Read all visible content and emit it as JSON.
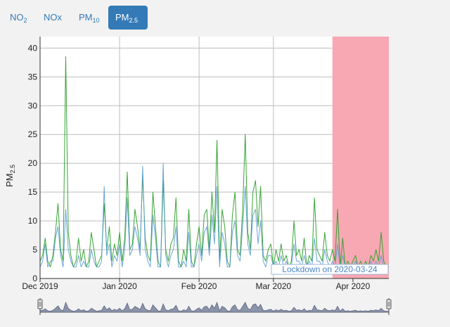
{
  "tabs": [
    {
      "base": "NO",
      "sub": "2",
      "active": false
    },
    {
      "base": "NOx",
      "sub": "",
      "active": false
    },
    {
      "base": "PM",
      "sub": "10",
      "active": false
    },
    {
      "base": "PM",
      "sub": "2.5",
      "active": true
    }
  ],
  "colors": {
    "series_green": "#2ca02c",
    "series_blue": "#5b9bd5",
    "lockdown_fill": "#f7a8b3",
    "annotation_text": "#4a86c8",
    "navigator_fill": "#8a93a8",
    "tab_accent": "#337ab7"
  },
  "chart_data": {
    "type": "line",
    "ylabel_base": "PM",
    "ylabel_sub": "2.5",
    "xlabel": "",
    "ylim": [
      0,
      42
    ],
    "xlim": [
      "2019-12-01",
      "2020-04-15"
    ],
    "grid": true,
    "y_ticks": [
      0,
      5,
      10,
      15,
      20,
      25,
      30,
      35,
      40
    ],
    "x_ticks": [
      {
        "date": "2019-12-01",
        "label": "Dec 2019"
      },
      {
        "date": "2020-01-01",
        "label": "Jan 2020"
      },
      {
        "date": "2020-02-01",
        "label": "Feb 2020"
      },
      {
        "date": "2020-03-01",
        "label": "Mar 2020"
      },
      {
        "date": "2020-04-01",
        "label": "Apr 2020"
      }
    ],
    "lockdown": {
      "start": "2020-03-24",
      "end": "2020-04-15",
      "label": "Lockdown on 2020-03-24"
    },
    "series": [
      {
        "color": "#2ca02c",
        "points": [
          [
            "2019-12-01",
            3
          ],
          [
            "2019-12-02",
            4
          ],
          [
            "2019-12-03",
            7
          ],
          [
            "2019-12-04",
            3
          ],
          [
            "2019-12-05",
            2
          ],
          [
            "2019-12-06",
            4
          ],
          [
            "2019-12-07",
            8
          ],
          [
            "2019-12-08",
            13
          ],
          [
            "2019-12-09",
            5
          ],
          [
            "2019-12-10",
            3
          ],
          [
            "2019-12-11",
            38.5
          ],
          [
            "2019-12-12",
            8
          ],
          [
            "2019-12-13",
            4
          ],
          [
            "2019-12-14",
            2
          ],
          [
            "2019-12-15",
            3
          ],
          [
            "2019-12-16",
            7
          ],
          [
            "2019-12-17",
            3
          ],
          [
            "2019-12-18",
            5
          ],
          [
            "2019-12-19",
            2
          ],
          [
            "2019-12-20",
            3
          ],
          [
            "2019-12-21",
            8
          ],
          [
            "2019-12-22",
            5
          ],
          [
            "2019-12-23",
            2
          ],
          [
            "2019-12-24",
            3
          ],
          [
            "2019-12-25",
            4
          ],
          [
            "2019-12-26",
            13
          ],
          [
            "2019-12-27",
            5
          ],
          [
            "2019-12-28",
            9
          ],
          [
            "2019-12-29",
            3
          ],
          [
            "2019-12-30",
            6
          ],
          [
            "2019-12-31",
            4
          ],
          [
            "2020-01-01",
            8
          ],
          [
            "2020-01-02",
            3
          ],
          [
            "2020-01-03",
            7
          ],
          [
            "2020-01-04",
            18.5
          ],
          [
            "2020-01-05",
            5
          ],
          [
            "2020-01-06",
            6
          ],
          [
            "2020-01-07",
            12
          ],
          [
            "2020-01-08",
            9
          ],
          [
            "2020-01-09",
            5
          ],
          [
            "2020-01-10",
            18
          ],
          [
            "2020-01-11",
            7
          ],
          [
            "2020-01-12",
            4
          ],
          [
            "2020-01-13",
            3
          ],
          [
            "2020-01-14",
            15
          ],
          [
            "2020-01-15",
            9
          ],
          [
            "2020-01-16",
            3
          ],
          [
            "2020-01-17",
            2
          ],
          [
            "2020-01-18",
            17
          ],
          [
            "2020-01-19",
            5
          ],
          [
            "2020-01-20",
            3
          ],
          [
            "2020-01-21",
            6
          ],
          [
            "2020-01-22",
            7
          ],
          [
            "2020-01-23",
            14
          ],
          [
            "2020-01-24",
            3
          ],
          [
            "2020-01-25",
            2
          ],
          [
            "2020-01-26",
            5
          ],
          [
            "2020-01-27",
            3
          ],
          [
            "2020-01-28",
            12
          ],
          [
            "2020-01-29",
            3
          ],
          [
            "2020-01-30",
            2
          ],
          [
            "2020-01-31",
            6
          ],
          [
            "2020-02-01",
            9
          ],
          [
            "2020-02-02",
            4
          ],
          [
            "2020-02-03",
            11
          ],
          [
            "2020-02-04",
            12
          ],
          [
            "2020-02-05",
            5
          ],
          [
            "2020-02-06",
            15
          ],
          [
            "2020-02-07",
            8
          ],
          [
            "2020-02-08",
            24
          ],
          [
            "2020-02-09",
            3
          ],
          [
            "2020-02-10",
            12
          ],
          [
            "2020-02-11",
            9
          ],
          [
            "2020-02-12",
            3
          ],
          [
            "2020-02-13",
            2
          ],
          [
            "2020-02-14",
            11
          ],
          [
            "2020-02-15",
            15
          ],
          [
            "2020-02-16",
            5
          ],
          [
            "2020-02-17",
            4
          ],
          [
            "2020-02-18",
            12
          ],
          [
            "2020-02-19",
            25
          ],
          [
            "2020-02-20",
            8
          ],
          [
            "2020-02-21",
            5
          ],
          [
            "2020-02-22",
            15
          ],
          [
            "2020-02-23",
            17
          ],
          [
            "2020-02-24",
            9
          ],
          [
            "2020-02-25",
            16
          ],
          [
            "2020-02-26",
            4
          ],
          [
            "2020-02-27",
            3
          ],
          [
            "2020-02-28",
            5
          ],
          [
            "2020-02-29",
            6
          ],
          [
            "2020-03-01",
            2
          ],
          [
            "2020-03-02",
            5
          ],
          [
            "2020-03-03",
            3
          ],
          [
            "2020-03-04",
            6
          ],
          [
            "2020-03-05",
            3
          ],
          [
            "2020-03-06",
            4
          ],
          [
            "2020-03-07",
            2
          ],
          [
            "2020-03-08",
            3
          ],
          [
            "2020-03-09",
            10
          ],
          [
            "2020-03-10",
            4
          ],
          [
            "2020-03-11",
            5
          ],
          [
            "2020-03-12",
            3
          ],
          [
            "2020-03-13",
            7
          ],
          [
            "2020-03-14",
            2
          ],
          [
            "2020-03-15",
            4
          ],
          [
            "2020-03-16",
            3
          ],
          [
            "2020-03-17",
            14
          ],
          [
            "2020-03-18",
            5
          ],
          [
            "2020-03-19",
            4
          ],
          [
            "2020-03-20",
            3
          ],
          [
            "2020-03-21",
            8
          ],
          [
            "2020-03-22",
            4
          ],
          [
            "2020-03-23",
            3
          ],
          [
            "2020-03-24",
            5
          ],
          [
            "2020-03-25",
            3
          ],
          [
            "2020-03-26",
            12
          ],
          [
            "2020-03-27",
            2
          ],
          [
            "2020-03-28",
            7
          ],
          [
            "2020-03-29",
            2
          ],
          [
            "2020-03-30",
            3
          ],
          [
            "2020-03-31",
            2
          ],
          [
            "2020-04-01",
            3
          ],
          [
            "2020-04-02",
            4
          ],
          [
            "2020-04-03",
            2
          ],
          [
            "2020-04-04",
            3
          ],
          [
            "2020-04-05",
            2
          ],
          [
            "2020-04-06",
            3
          ],
          [
            "2020-04-07",
            2
          ],
          [
            "2020-04-08",
            4
          ],
          [
            "2020-04-09",
            3
          ],
          [
            "2020-04-10",
            5
          ],
          [
            "2020-04-11",
            3
          ],
          [
            "2020-04-12",
            8
          ],
          [
            "2020-04-13",
            3
          ],
          [
            "2020-04-14",
            2
          ],
          [
            "2020-04-15",
            2
          ]
        ]
      },
      {
        "color": "#5b9bd5",
        "points": [
          [
            "2019-12-01",
            2
          ],
          [
            "2019-12-02",
            3
          ],
          [
            "2019-12-03",
            6
          ],
          [
            "2019-12-04",
            2
          ],
          [
            "2019-12-05",
            3
          ],
          [
            "2019-12-06",
            3
          ],
          [
            "2019-12-07",
            7
          ],
          [
            "2019-12-08",
            9
          ],
          [
            "2019-12-09",
            4
          ],
          [
            "2019-12-10",
            2
          ],
          [
            "2019-12-11",
            12
          ],
          [
            "2019-12-12",
            5
          ],
          [
            "2019-12-13",
            3
          ],
          [
            "2019-12-14",
            2
          ],
          [
            "2019-12-15",
            2
          ],
          [
            "2019-12-16",
            4
          ],
          [
            "2019-12-17",
            2
          ],
          [
            "2019-12-18",
            3
          ],
          [
            "2019-12-19",
            2
          ],
          [
            "2019-12-20",
            2
          ],
          [
            "2019-12-21",
            5
          ],
          [
            "2019-12-22",
            3
          ],
          [
            "2019-12-23",
            2
          ],
          [
            "2019-12-24",
            2
          ],
          [
            "2019-12-25",
            3
          ],
          [
            "2019-12-26",
            16
          ],
          [
            "2019-12-27",
            4
          ],
          [
            "2019-12-28",
            6
          ],
          [
            "2019-12-29",
            2
          ],
          [
            "2019-12-30",
            4
          ],
          [
            "2019-12-31",
            3
          ],
          [
            "2020-01-01",
            6
          ],
          [
            "2020-01-02",
            2
          ],
          [
            "2020-01-03",
            5
          ],
          [
            "2020-01-04",
            14
          ],
          [
            "2020-01-05",
            4
          ],
          [
            "2020-01-06",
            5
          ],
          [
            "2020-01-07",
            9
          ],
          [
            "2020-01-08",
            7
          ],
          [
            "2020-01-09",
            4
          ],
          [
            "2020-01-10",
            19.5
          ],
          [
            "2020-01-11",
            5
          ],
          [
            "2020-01-12",
            3
          ],
          [
            "2020-01-13",
            2
          ],
          [
            "2020-01-14",
            11
          ],
          [
            "2020-01-15",
            7
          ],
          [
            "2020-01-16",
            2
          ],
          [
            "2020-01-17",
            2
          ],
          [
            "2020-01-18",
            20
          ],
          [
            "2020-01-19",
            4
          ],
          [
            "2020-01-20",
            2
          ],
          [
            "2020-01-21",
            4
          ],
          [
            "2020-01-22",
            5
          ],
          [
            "2020-01-23",
            9
          ],
          [
            "2020-01-24",
            2
          ],
          [
            "2020-01-25",
            2
          ],
          [
            "2020-01-26",
            3
          ],
          [
            "2020-01-27",
            2
          ],
          [
            "2020-01-28",
            8
          ],
          [
            "2020-01-29",
            2
          ],
          [
            "2020-01-30",
            2
          ],
          [
            "2020-01-31",
            4
          ],
          [
            "2020-02-01",
            6
          ],
          [
            "2020-02-02",
            3
          ],
          [
            "2020-02-03",
            8
          ],
          [
            "2020-02-04",
            9
          ],
          [
            "2020-02-05",
            4
          ],
          [
            "2020-02-06",
            11
          ],
          [
            "2020-02-07",
            6
          ],
          [
            "2020-02-08",
            16
          ],
          [
            "2020-02-09",
            2
          ],
          [
            "2020-02-10",
            8
          ],
          [
            "2020-02-11",
            6
          ],
          [
            "2020-02-12",
            2
          ],
          [
            "2020-02-13",
            2
          ],
          [
            "2020-02-14",
            8
          ],
          [
            "2020-02-15",
            10
          ],
          [
            "2020-02-16",
            4
          ],
          [
            "2020-02-17",
            3
          ],
          [
            "2020-02-18",
            9
          ],
          [
            "2020-02-19",
            16
          ],
          [
            "2020-02-20",
            6
          ],
          [
            "2020-02-21",
            4
          ],
          [
            "2020-02-22",
            11
          ],
          [
            "2020-02-23",
            12
          ],
          [
            "2020-02-24",
            6
          ],
          [
            "2020-02-25",
            10
          ],
          [
            "2020-02-26",
            3
          ],
          [
            "2020-02-27",
            2
          ],
          [
            "2020-02-28",
            4
          ],
          [
            "2020-02-29",
            4
          ],
          [
            "2020-03-01",
            2
          ],
          [
            "2020-03-02",
            3
          ],
          [
            "2020-03-03",
            2
          ],
          [
            "2020-03-04",
            4
          ],
          [
            "2020-03-05",
            2
          ],
          [
            "2020-03-06",
            3
          ],
          [
            "2020-03-07",
            2
          ],
          [
            "2020-03-08",
            2
          ],
          [
            "2020-03-09",
            6
          ],
          [
            "2020-03-10",
            3
          ],
          [
            "2020-03-11",
            3
          ],
          [
            "2020-03-12",
            2
          ],
          [
            "2020-03-13",
            4
          ],
          [
            "2020-03-14",
            2
          ],
          [
            "2020-03-15",
            3
          ],
          [
            "2020-03-16",
            2
          ],
          [
            "2020-03-17",
            7
          ],
          [
            "2020-03-18",
            3
          ],
          [
            "2020-03-19",
            3
          ],
          [
            "2020-03-20",
            2
          ],
          [
            "2020-03-21",
            5
          ],
          [
            "2020-03-22",
            3
          ],
          [
            "2020-03-23",
            2
          ],
          [
            "2020-03-24",
            3
          ],
          [
            "2020-03-25",
            2
          ],
          [
            "2020-03-26",
            6
          ],
          [
            "2020-03-27",
            2
          ],
          [
            "2020-03-28",
            4
          ],
          [
            "2020-03-29",
            2
          ],
          [
            "2020-03-30",
            2
          ],
          [
            "2020-03-31",
            2
          ],
          [
            "2020-04-01",
            2
          ],
          [
            "2020-04-02",
            3
          ],
          [
            "2020-04-03",
            2
          ],
          [
            "2020-04-04",
            2
          ],
          [
            "2020-04-05",
            2
          ],
          [
            "2020-04-06",
            2
          ],
          [
            "2020-04-07",
            2
          ],
          [
            "2020-04-08",
            3
          ],
          [
            "2020-04-09",
            2
          ],
          [
            "2020-04-10",
            3
          ],
          [
            "2020-04-11",
            2
          ],
          [
            "2020-04-12",
            4
          ],
          [
            "2020-04-13",
            2
          ],
          [
            "2020-04-14",
            2
          ],
          [
            "2020-04-15",
            2
          ]
        ]
      }
    ]
  }
}
